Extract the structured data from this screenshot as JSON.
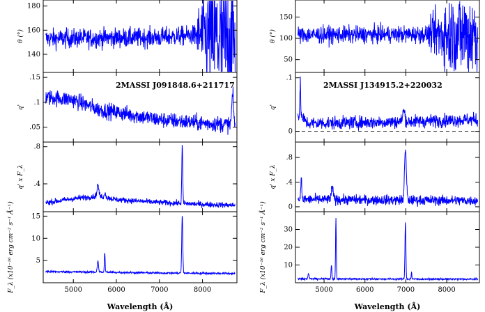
{
  "colors": {
    "series": "#0000ff",
    "axis": "#000000"
  },
  "chart_data": [
    {
      "column": "left",
      "type": "line",
      "title": "2MASSI J091848.6+211717",
      "xlabel": "Wavelength (Å)",
      "xlim": [
        4300,
        8800
      ],
      "xticks": [
        5000,
        6000,
        7000,
        8000
      ],
      "panels": [
        {
          "id": "theta",
          "ylabel": "θ (°)",
          "ylim": [
            125,
            185
          ],
          "yticks": [
            140,
            160,
            180
          ],
          "noise": 4,
          "trend": [
            [
              4400,
              153
            ],
            [
              7000,
              154
            ],
            [
              7900,
              156
            ],
            [
              8800,
              150
            ]
          ],
          "noise_growth": [
            [
              7800,
              4
            ],
            [
              8000,
              18
            ],
            [
              8800,
              40
            ]
          ],
          "lines": []
        },
        {
          "id": "q",
          "ylabel": "q'",
          "ylim": [
            0.02,
            0.16
          ],
          "yticks": [
            0.05,
            0.1,
            0.15
          ],
          "noise": 0.008,
          "trend": [
            [
              4400,
              0.11
            ],
            [
              5000,
              0.105
            ],
            [
              5600,
              0.085
            ],
            [
              6000,
              0.08
            ],
            [
              7000,
              0.065
            ],
            [
              8000,
              0.058
            ],
            [
              8700,
              0.055
            ]
          ],
          "lines": [
            {
              "x": 8700,
              "h": 0.06,
              "w": 40
            }
          ]
        },
        {
          "id": "qF",
          "ylabel": "q' x F_λ",
          "ylim": [
            0.1,
            0.85
          ],
          "yticks": [
            0.4,
            0.8
          ],
          "noise": 0.015,
          "trend": [
            [
              4400,
              0.2
            ],
            [
              5000,
              0.24
            ],
            [
              5600,
              0.27
            ],
            [
              6000,
              0.23
            ],
            [
              7000,
              0.2
            ],
            [
              8000,
              0.18
            ],
            [
              8700,
              0.17
            ]
          ],
          "lines": [
            {
              "x": 5570,
              "h": 0.12,
              "w": 40
            },
            {
              "x": 5740,
              "h": 0.06,
              "w": 25
            },
            {
              "x": 7530,
              "h": 0.62,
              "w": 22
            }
          ]
        },
        {
          "id": "F",
          "ylabel": "F_λ (x10⁻¹⁶ erg cm⁻² s⁻¹ Å⁻¹)",
          "ylim": [
            0,
            16
          ],
          "yticks": [
            5,
            10,
            15
          ],
          "noise": 0.12,
          "trend": [
            [
              4400,
              2.5
            ],
            [
              5500,
              2.4
            ],
            [
              7000,
              2.2
            ],
            [
              8700,
              2.1
            ]
          ],
          "lines": [
            {
              "x": 5570,
              "h": 2.5,
              "w": 30
            },
            {
              "x": 5730,
              "h": 4.5,
              "w": 18
            },
            {
              "x": 7530,
              "h": 13,
              "w": 24
            }
          ]
        }
      ]
    },
    {
      "column": "right",
      "type": "line",
      "title": "2MASSI J134915.2+220032",
      "xlabel": "Wavelength (Å)",
      "xlim": [
        4300,
        8800
      ],
      "xticks": [
        5000,
        6000,
        7000,
        8000
      ],
      "panels": [
        {
          "id": "theta",
          "ylabel": "θ (°)",
          "ylim": [
            20,
            190
          ],
          "yticks": [
            50,
            100,
            150
          ],
          "noise": 10,
          "trend": [
            [
              4400,
              108
            ],
            [
              8800,
              110
            ]
          ],
          "noise_growth": [
            [
              7500,
              10
            ],
            [
              7900,
              40
            ],
            [
              8600,
              55
            ]
          ],
          "lines": []
        },
        {
          "id": "q",
          "ylabel": "q'",
          "ylim": [
            -0.02,
            0.11
          ],
          "yticks": [
            0,
            0.1
          ],
          "noise": 0.006,
          "trend": [
            [
              4400,
              0.03
            ],
            [
              4600,
              0.015
            ],
            [
              7000,
              0.018
            ],
            [
              8700,
              0.022
            ]
          ],
          "lines": [
            {
              "x": 4420,
              "h": 0.06,
              "w": 20
            },
            {
              "x": 6950,
              "h": 0.02,
              "w": 60
            }
          ],
          "dashed_zero": true
        },
        {
          "id": "qF",
          "ylabel": "q' x F_λ",
          "ylim": [
            -0.08,
            1.05
          ],
          "yticks": [
            0,
            0.4,
            0.8
          ],
          "noise": 0.04,
          "trend": [
            [
              4400,
              0.12
            ],
            [
              8700,
              0.1
            ]
          ],
          "lines": [
            {
              "x": 4440,
              "h": 0.35,
              "w": 25
            },
            {
              "x": 5200,
              "h": 0.18,
              "w": 50
            },
            {
              "x": 6990,
              "h": 0.8,
              "w": 45
            }
          ]
        },
        {
          "id": "F",
          "ylabel": "F_λ (x10⁻¹⁶ erg cm⁻² s⁻¹ Å⁻¹)",
          "ylim": [
            0,
            40
          ],
          "yticks": [
            10,
            20,
            30
          ],
          "noise": 0.25,
          "trend": [
            [
              4400,
              2.2
            ],
            [
              8700,
              2.0
            ]
          ],
          "lines": [
            {
              "x": 4620,
              "h": 3,
              "w": 25
            },
            {
              "x": 5180,
              "h": 8,
              "w": 20
            },
            {
              "x": 5290,
              "h": 34,
              "w": 18
            },
            {
              "x": 6990,
              "h": 32,
              "w": 22
            },
            {
              "x": 7140,
              "h": 4,
              "w": 15
            }
          ]
        }
      ]
    }
  ]
}
